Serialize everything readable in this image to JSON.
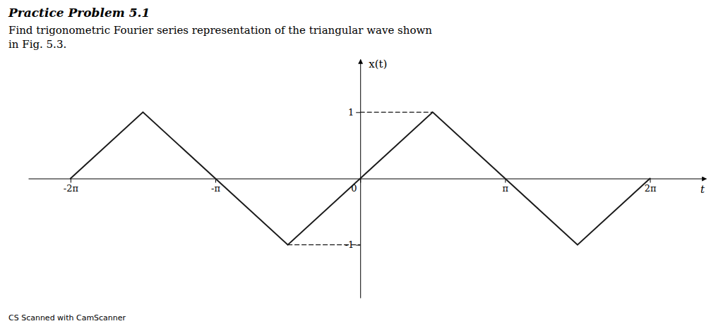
{
  "chart_data": {
    "type": "line",
    "title": "Practice Problem 5.1",
    "subtitle": [
      "Find trigonometric Fourier series representation of the triangular wave shown",
      "in Fig. 5.3."
    ],
    "annotations": [
      "CS Scanned with CamScanner"
    ],
    "x_label": "t",
    "y_label": "x(t)",
    "xlim": [
      -7.2,
      7.5
    ],
    "ylim": [
      -1.8,
      1.8
    ],
    "xticks": [
      {
        "value": -6.283185307179586,
        "label": "-2π"
      },
      {
        "value": -3.141592653589793,
        "label": "-π"
      },
      0,
      {
        "value": 3.141592653589793,
        "label": "π"
      },
      {
        "value": 6.283185307179586,
        "label": "2π "
      }
    ],
    "yticks": [
      -1,
      1
    ],
    "grid": false,
    "series": [
      {
        "color": "#1a1a1a",
        "line_style": "solid",
        "x": [
          -6.283185307179586,
          -4.71238898038469,
          -3.141592653589793,
          -1.5707963267948966,
          0,
          1.5707963267948966,
          3.141592653589793,
          4.71238898038469,
          6.283185307179586
        ],
        "values": [
          0,
          1,
          0,
          -1,
          0,
          1,
          0,
          -1,
          0
        ]
      },
      {
        "color": "#1a1a1a",
        "line_style": "dashed",
        "x": [
          0,
          1.5707963267948966
        ],
        "values": [
          1,
          1
        ]
      },
      {
        "color": "#1a1a1a",
        "line_style": "dashed",
        "x": [
          -1.5707963267948966,
          0
        ],
        "values": [
          -1,
          -1
        ]
      }
    ]
  }
}
